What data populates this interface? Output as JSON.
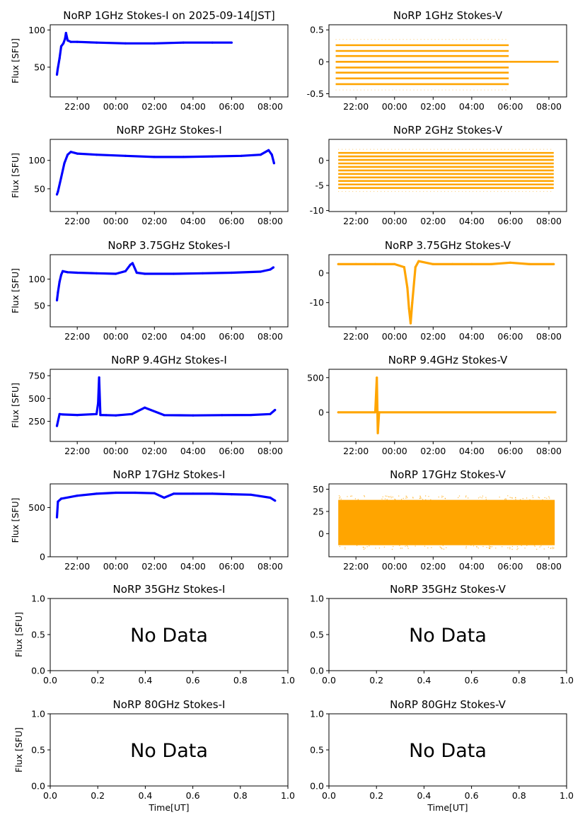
{
  "figure": {
    "width": 827,
    "height": 1169,
    "colors": {
      "stokes_i": "#0000ff",
      "stokes_v": "#ffa500",
      "axes": "#000000",
      "background": "#ffffff"
    }
  },
  "chart_data": [
    {
      "id": "i1",
      "type": "scatter",
      "title": "NoRP 1GHz Stokes-I on 2025-09-14[JST]",
      "ylabel": "Flux [SFU]",
      "xlabel": "",
      "color": "#0000ff",
      "xlim": [
        "20:36",
        "08:55"
      ],
      "ylim": [
        10,
        107
      ],
      "xticks": [
        "22:00",
        "00:00",
        "02:00",
        "04:00",
        "06:00",
        "08:00"
      ],
      "yticks": [
        50,
        100
      ],
      "series": [
        {
          "x": [
            "20:57",
            "20:59",
            "21:05",
            "21:10",
            "21:17",
            "21:22",
            "21:25",
            "21:30",
            "21:40",
            "22:00",
            "23:00",
            "00:30",
            "02:00",
            "03:30",
            "05:00",
            "06:00"
          ],
          "y": [
            40,
            47,
            62,
            78,
            82,
            88,
            96,
            86,
            84,
            84,
            83,
            82,
            82,
            83,
            83,
            83
          ]
        }
      ]
    },
    {
      "id": "v1",
      "type": "scatter",
      "title": "NoRP 1GHz Stokes-V",
      "ylabel": "",
      "xlabel": "",
      "color": "#ffa500",
      "xlim": [
        "20:36",
        "08:55"
      ],
      "ylim": [
        -0.55,
        0.58
      ],
      "xticks": [
        "22:00",
        "00:00",
        "02:00",
        "04:00",
        "06:00",
        "08:00"
      ],
      "yticks": [
        -0.5,
        0.0,
        0.5
      ],
      "series": [
        {
          "levels": [
            -0.35,
            -0.26,
            -0.17,
            -0.09,
            0.0,
            0.09,
            0.17,
            0.26
          ],
          "x_range": [
            "20:57",
            "05:55"
          ]
        },
        {
          "levels": [
            0.0
          ],
          "x_range": [
            "05:55",
            "08:30"
          ]
        }
      ]
    },
    {
      "id": "i2",
      "type": "scatter",
      "title": "NoRP 2GHz Stokes-I",
      "ylabel": "Flux [SFU]",
      "xlabel": "",
      "color": "#0000ff",
      "xlim": [
        "20:36",
        "08:55"
      ],
      "ylim": [
        10,
        137
      ],
      "xticks": [
        "22:00",
        "00:00",
        "02:00",
        "04:00",
        "06:00",
        "08:00"
      ],
      "yticks": [
        50,
        100
      ],
      "series": [
        {
          "x": [
            "20:57",
            "21:00",
            "21:10",
            "21:20",
            "21:30",
            "21:40",
            "22:00",
            "23:00",
            "00:30",
            "02:00",
            "03:30",
            "05:00",
            "06:30",
            "07:30",
            "07:55",
            "08:05",
            "08:12"
          ],
          "y": [
            40,
            45,
            70,
            95,
            110,
            115,
            112,
            110,
            108,
            106,
            106,
            107,
            108,
            110,
            118,
            110,
            95
          ]
        }
      ]
    },
    {
      "id": "v2",
      "type": "scatter",
      "title": "NoRP 2GHz Stokes-V",
      "ylabel": "",
      "xlabel": "",
      "color": "#ffa500",
      "xlim": [
        "20:36",
        "08:55"
      ],
      "ylim": [
        -10.2,
        4.2
      ],
      "xticks": [
        "22:00",
        "00:00",
        "02:00",
        "04:00",
        "06:00",
        "08:00"
      ],
      "yticks": [
        -10,
        -5,
        0
      ],
      "series": [
        {
          "levels": [
            -5.5,
            -4.8,
            -4.1,
            -3.4,
            -2.7,
            -2.0,
            -1.3,
            -0.6,
            0.1,
            0.8,
            1.5
          ],
          "x_range": [
            "21:05",
            "08:15"
          ]
        }
      ]
    },
    {
      "id": "i3",
      "type": "scatter",
      "title": "NoRP 3.75GHz Stokes-I",
      "ylabel": "Flux [SFU]",
      "xlabel": "",
      "color": "#0000ff",
      "xlim": [
        "20:36",
        "08:55"
      ],
      "ylim": [
        10,
        146
      ],
      "xticks": [
        "22:00",
        "00:00",
        "02:00",
        "04:00",
        "06:00",
        "08:00"
      ],
      "yticks": [
        50,
        100
      ],
      "series": [
        {
          "x": [
            "20:57",
            "21:00",
            "21:05",
            "21:10",
            "21:15",
            "21:30",
            "22:00",
            "23:00",
            "00:00",
            "00:30",
            "00:45",
            "00:52",
            "01:05",
            "01:30",
            "03:00",
            "04:30",
            "06:00",
            "07:30",
            "08:00",
            "08:10"
          ],
          "y": [
            60,
            75,
            95,
            108,
            115,
            113,
            112,
            111,
            110,
            115,
            127,
            130,
            112,
            110,
            110,
            111,
            112,
            114,
            118,
            122
          ]
        }
      ]
    },
    {
      "id": "v3",
      "type": "scatter",
      "title": "NoRP 3.75GHz Stokes-V",
      "ylabel": "",
      "xlabel": "",
      "color": "#ffa500",
      "xlim": [
        "20:36",
        "08:55"
      ],
      "ylim": [
        -18.2,
        6.2
      ],
      "xticks": [
        "22:00",
        "00:00",
        "02:00",
        "04:00",
        "06:00",
        "08:00"
      ],
      "yticks": [
        -10,
        0
      ],
      "series": [
        {
          "x": [
            "21:05",
            "22:00",
            "23:00",
            "00:00",
            "00:30",
            "00:40",
            "00:45",
            "00:50",
            "00:55",
            "01:05",
            "01:15",
            "02:00",
            "03:00",
            "04:00",
            "05:00",
            "06:00",
            "07:00",
            "08:15"
          ],
          "y": [
            3,
            3,
            3,
            3,
            2,
            -5,
            -12,
            -17,
            -10,
            2,
            4,
            3,
            3,
            3,
            3,
            3.5,
            3,
            3
          ]
        }
      ]
    },
    {
      "id": "i4",
      "type": "scatter",
      "title": "NoRP 9.4GHz Stokes-I",
      "ylabel": "Flux [SFU]",
      "xlabel": "",
      "color": "#0000ff",
      "xlim": [
        "20:36",
        "08:55"
      ],
      "ylim": [
        30,
        820
      ],
      "xticks": [
        "22:00",
        "00:00",
        "02:00",
        "04:00",
        "06:00",
        "08:00"
      ],
      "yticks": [
        250,
        500,
        750
      ],
      "series": [
        {
          "x": [
            "20:57",
            "21:05",
            "21:15",
            "22:00",
            "23:00",
            "23:05",
            "23:08",
            "23:12",
            "23:30",
            "00:00",
            "00:50",
            "01:30",
            "02:30",
            "04:00",
            "05:30",
            "07:00",
            "08:00",
            "08:15"
          ],
          "y": [
            200,
            330,
            325,
            320,
            330,
            450,
            730,
            320,
            318,
            315,
            330,
            400,
            318,
            315,
            318,
            320,
            330,
            375
          ]
        }
      ]
    },
    {
      "id": "v4",
      "type": "scatter",
      "title": "NoRP 9.4GHz Stokes-V",
      "ylabel": "",
      "xlabel": "",
      "color": "#ffa500",
      "xlim": [
        "20:36",
        "08:55"
      ],
      "ylim": [
        -420,
        620
      ],
      "xticks": [
        "22:00",
        "00:00",
        "02:00",
        "04:00",
        "06:00",
        "08:00"
      ],
      "yticks": [
        0,
        500
      ],
      "series": [
        {
          "x": [
            "21:05",
            "23:00",
            "23:05",
            "23:08",
            "23:12",
            "08:20"
          ],
          "y": [
            0,
            0,
            500,
            -300,
            0,
            0
          ]
        }
      ]
    },
    {
      "id": "i5",
      "type": "scatter",
      "title": "NoRP 17GHz Stokes-I",
      "ylabel": "Flux [SFU]",
      "xlabel": "",
      "color": "#0000ff",
      "xlim": [
        "20:36",
        "08:55"
      ],
      "ylim": [
        0,
        740
      ],
      "xticks": [
        "22:00",
        "00:00",
        "02:00",
        "04:00",
        "06:00",
        "08:00"
      ],
      "yticks": [
        0,
        500
      ],
      "series": [
        {
          "x": [
            "20:57",
            "21:00",
            "21:10",
            "22:00",
            "23:00",
            "00:00",
            "01:00",
            "02:00",
            "02:30",
            "03:00",
            "04:00",
            "05:00",
            "06:00",
            "07:00",
            "08:00",
            "08:15"
          ],
          "y": [
            400,
            560,
            590,
            620,
            640,
            650,
            650,
            645,
            600,
            640,
            640,
            640,
            635,
            630,
            600,
            570
          ]
        }
      ]
    },
    {
      "id": "v5",
      "type": "scatter",
      "title": "NoRP 17GHz Stokes-V",
      "ylabel": "",
      "xlabel": "",
      "color": "#ffa500",
      "xlim": [
        "20:36",
        "08:55"
      ],
      "ylim": [
        -26,
        56
      ],
      "xticks": [
        "22:00",
        "00:00",
        "02:00",
        "04:00",
        "06:00",
        "08:00"
      ],
      "yticks": [
        0,
        25,
        50
      ],
      "series": [
        {
          "band": [
            -13,
            38
          ],
          "x_range": [
            "21:05",
            "08:18"
          ]
        }
      ]
    },
    {
      "id": "i6",
      "type": "scatter",
      "title": "NoRP 35GHz Stokes-I",
      "ylabel": "Flux [SFU]",
      "xlabel": "",
      "annotation": "No Data",
      "xlim": [
        0,
        1
      ],
      "ylim": [
        0,
        1
      ],
      "xticks": [
        "0.0",
        "0.2",
        "0.4",
        "0.6",
        "0.8",
        "1.0"
      ],
      "yticks": [
        "0.0",
        "0.5",
        "1.0"
      ],
      "series": []
    },
    {
      "id": "v6",
      "type": "scatter",
      "title": "NoRP 35GHz Stokes-V",
      "ylabel": "",
      "xlabel": "",
      "annotation": "No Data",
      "xlim": [
        0,
        1
      ],
      "ylim": [
        0,
        1
      ],
      "xticks": [
        "0.0",
        "0.2",
        "0.4",
        "0.6",
        "0.8",
        "1.0"
      ],
      "yticks": [
        "0.0",
        "0.5",
        "1.0"
      ],
      "series": []
    },
    {
      "id": "i7",
      "type": "scatter",
      "title": "NoRP 80GHz Stokes-I",
      "ylabel": "Flux [SFU]",
      "xlabel": "Time[UT]",
      "annotation": "No Data",
      "xlim": [
        0,
        1
      ],
      "ylim": [
        0,
        1
      ],
      "xticks": [
        "0.0",
        "0.2",
        "0.4",
        "0.6",
        "0.8",
        "1.0"
      ],
      "yticks": [
        "0.0",
        "0.5",
        "1.0"
      ],
      "series": []
    },
    {
      "id": "v7",
      "type": "scatter",
      "title": "NoRP 80GHz Stokes-V",
      "ylabel": "",
      "xlabel": "Time[UT]",
      "annotation": "No Data",
      "xlim": [
        0,
        1
      ],
      "ylim": [
        0,
        1
      ],
      "xticks": [
        "0.0",
        "0.2",
        "0.4",
        "0.6",
        "0.8",
        "1.0"
      ],
      "yticks": [
        "0.0",
        "0.5",
        "1.0"
      ],
      "series": []
    }
  ]
}
